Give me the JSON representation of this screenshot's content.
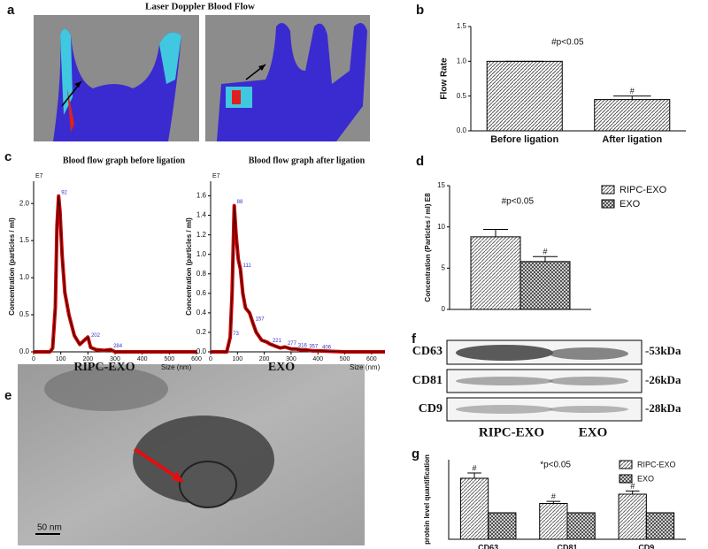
{
  "panel_labels": [
    "a",
    "b",
    "c",
    "d",
    "e",
    "f",
    "g"
  ],
  "panel_a": {
    "title": "Laser Doppler Blood Flow"
  },
  "chart_data": [
    {
      "type": "bar",
      "ylabel": "Flow Rate",
      "annotation": "#p<0.05",
      "categories": [
        "Before ligation",
        "After ligation"
      ],
      "values": [
        1.0,
        0.45
      ],
      "errors": [
        0,
        0.05
      ],
      "sig_marks": [
        null,
        "#"
      ],
      "color": "#555555",
      "ylim": [
        0,
        1.5
      ],
      "yticks": [
        {
          "value": 0,
          "label": "0.0"
        },
        0.5,
        {
          "value": 1,
          "label": "1.0"
        },
        1.5
      ]
    },
    {
      "type": "line",
      "title": "Blood flow graph before ligation",
      "ylabel": "Concentration (particles / ml)",
      "scale_label": "E7",
      "xlabel": "Size (nm)",
      "name_label": "RIPC-EXO",
      "x": [
        0,
        60,
        70,
        80,
        86,
        92,
        97,
        105,
        115,
        130,
        150,
        170,
        185,
        200,
        210,
        230,
        260,
        284,
        300,
        400,
        600
      ],
      "series": [
        {
          "color": "#cc0000",
          "values": [
            0,
            0,
            0.05,
            0.6,
            1.7,
            2.1,
            1.9,
            1.3,
            0.8,
            0.5,
            0.22,
            0.1,
            0.15,
            0.2,
            0.06,
            0.03,
            0.02,
            0.03,
            0,
            0,
            0
          ]
        }
      ],
      "peak_labels": [
        92,
        202,
        284
      ],
      "xlim": [
        0,
        600
      ],
      "xticks": [
        0,
        100,
        200,
        300,
        400,
        500,
        600
      ],
      "ylim": [
        0,
        2.3
      ],
      "yticks": [
        {
          "value": 0,
          "label": "0.0"
        },
        0.5,
        {
          "value": 1,
          "label": "1.0"
        },
        1.5,
        {
          "value": 2,
          "label": "2.0"
        }
      ]
    },
    {
      "type": "line",
      "title": "Blood flow graph after ligation",
      "ylabel": "Concentration (particles / ml)",
      "scale_label": "E7",
      "xlabel": "Size (nm)",
      "name_label": "EXO",
      "x": [
        0,
        60,
        73,
        80,
        88,
        95,
        103,
        111,
        120,
        130,
        145,
        157,
        170,
        190,
        210,
        221,
        240,
        260,
        277,
        300,
        316,
        340,
        357,
        380,
        406,
        500,
        650
      ],
      "series": [
        {
          "color": "#cc0000",
          "values": [
            0,
            0,
            0.15,
            0.6,
            1.5,
            1.2,
            0.95,
            0.85,
            0.6,
            0.45,
            0.4,
            0.3,
            0.2,
            0.12,
            0.1,
            0.08,
            0.06,
            0.04,
            0.05,
            0.03,
            0.03,
            0.02,
            0.02,
            0.01,
            0.01,
            0,
            0
          ]
        }
      ],
      "peak_labels": [
        73,
        88,
        111,
        157,
        221,
        277,
        316,
        357,
        406
      ],
      "xlim": [
        0,
        650
      ],
      "xticks": [
        0,
        100,
        200,
        300,
        400,
        500,
        600
      ],
      "ylim": [
        0,
        1.75
      ],
      "yticks": [
        {
          "value": 0,
          "label": "0.0"
        },
        0.2,
        0.4,
        0.6,
        0.8,
        {
          "value": 1,
          "label": "1.0"
        },
        1.2,
        1.4,
        1.6
      ]
    },
    {
      "type": "bar",
      "ylabel": "Concentration (Particles / ml) E8",
      "annotation": "#p<0.05",
      "series": [
        {
          "name": "RIPC-EXO",
          "color": "#666666",
          "values": [
            8.8
          ],
          "errors": [
            0.9
          ]
        },
        {
          "name": "EXO",
          "color": "#444444",
          "values": [
            5.8
          ],
          "errors": [
            0.6
          ],
          "sig_marks": [
            "#"
          ]
        }
      ],
      "ylim": [
        0,
        15
      ],
      "yticks": [
        0,
        5,
        10,
        15
      ]
    },
    {
      "type": "bar",
      "ylabel": "protein level quantification",
      "annotation": "*p<0.05",
      "categories": [
        "CD63",
        "CD81",
        "CD9"
      ],
      "series": [
        {
          "name": "RIPC-EXO",
          "color": "#666666",
          "values": [
            2.3,
            1.35,
            1.7
          ],
          "errors": [
            0.2,
            0.08,
            0.12
          ],
          "sig_marks": [
            "#",
            "#",
            "#"
          ]
        },
        {
          "name": "EXO",
          "color": "#444444",
          "values": [
            1,
            1,
            1
          ],
          "errors": [
            0,
            0,
            0
          ]
        }
      ],
      "ylim": [
        0,
        3
      ]
    }
  ],
  "panel_e": {
    "scale_label": "50 nm"
  },
  "panel_f": {
    "bands": [
      "CD63",
      "CD81",
      "CD9"
    ],
    "sizes": [
      "-53kDa",
      "-26kDa",
      "-28kDa"
    ],
    "lanes": [
      "RIPC-EXO",
      "EXO"
    ]
  }
}
